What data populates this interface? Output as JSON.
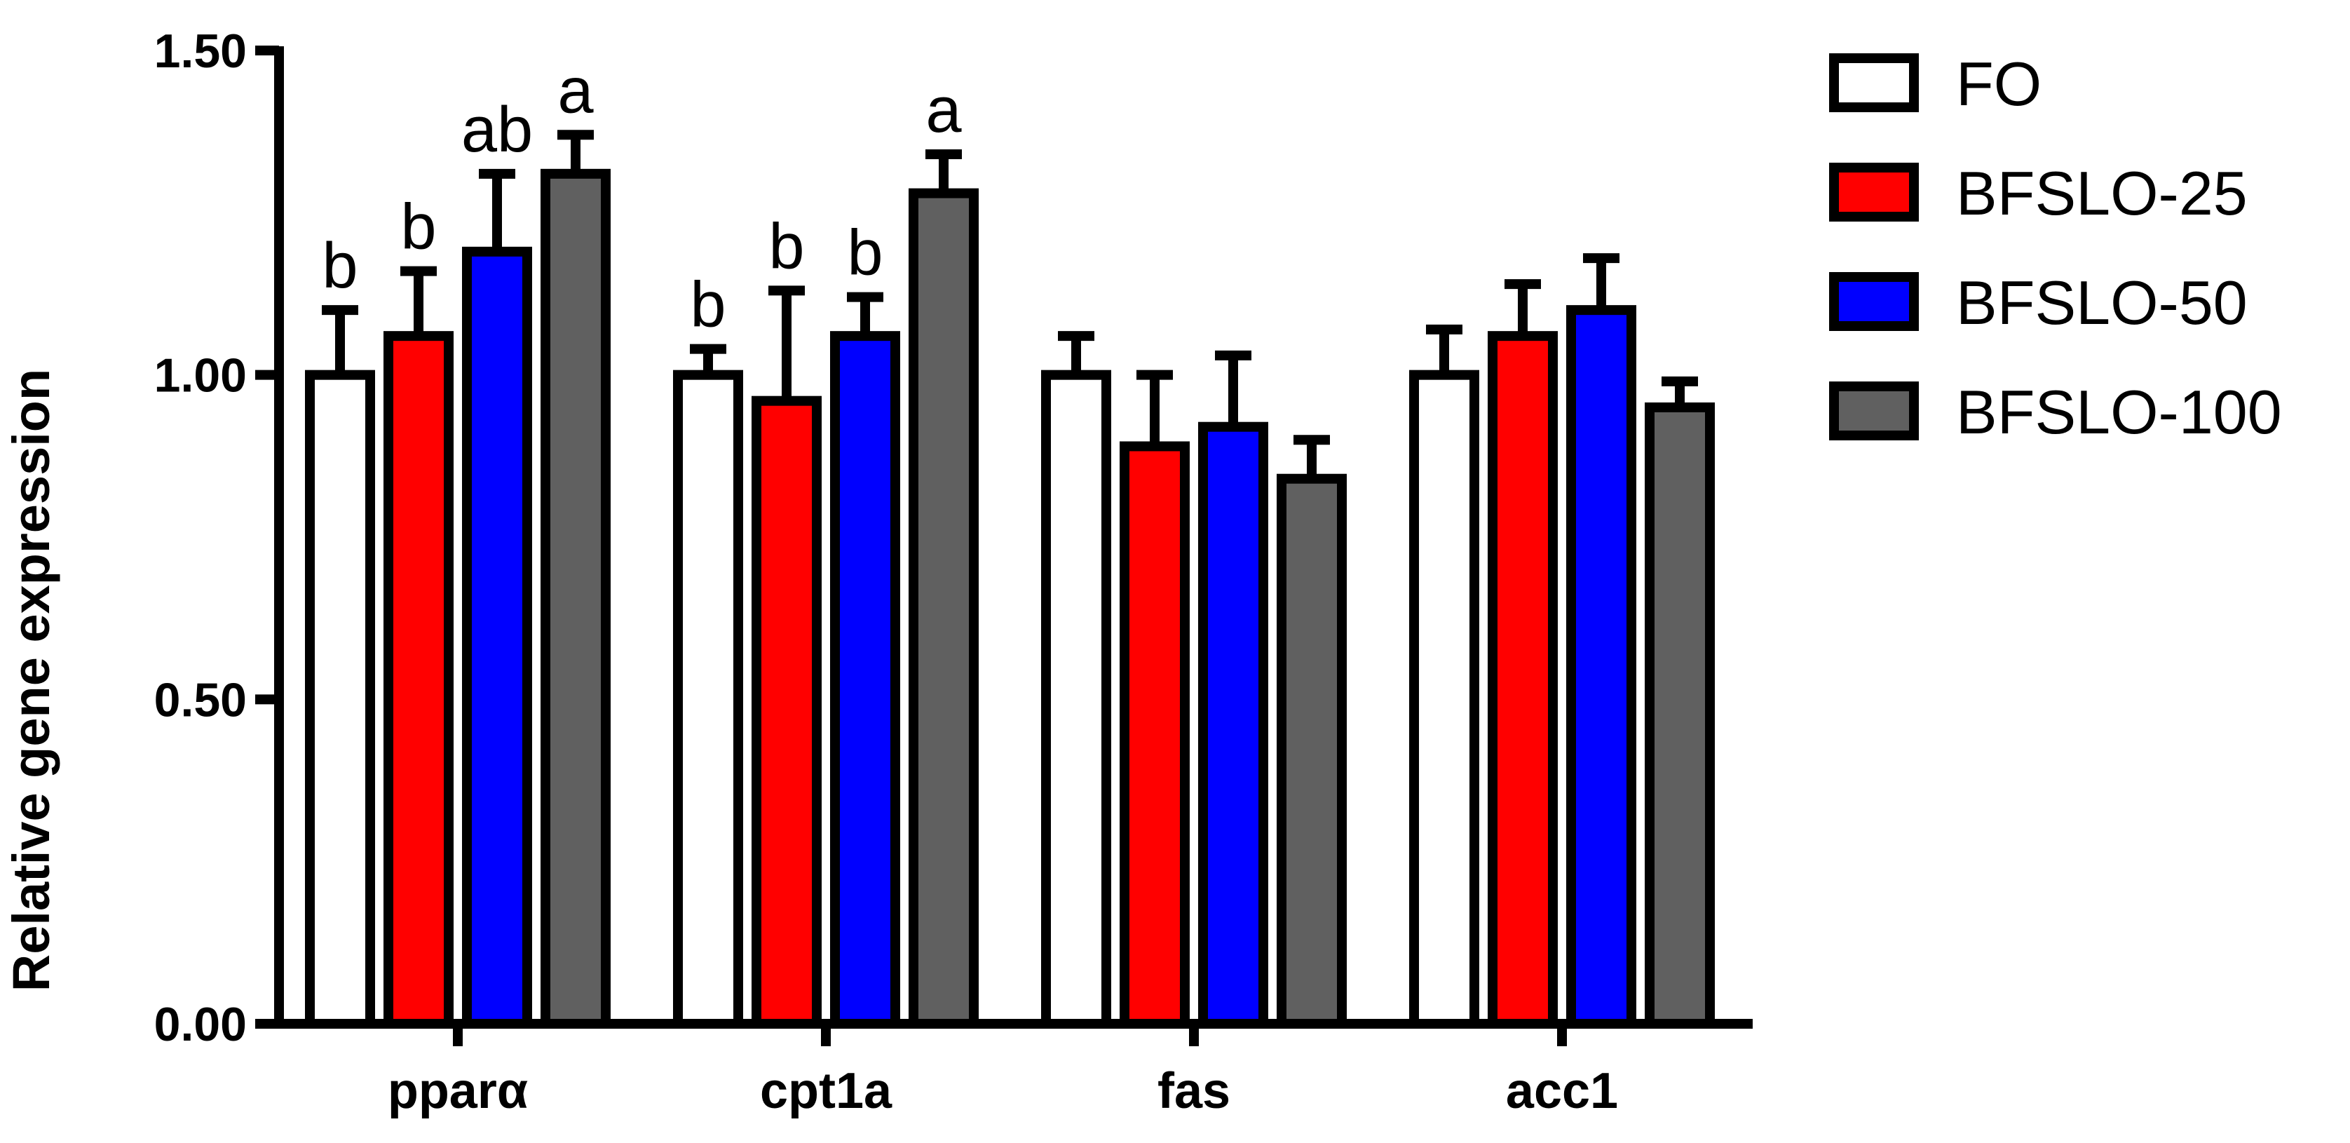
{
  "chart_data": {
    "type": "bar",
    "title": "",
    "xlabel": "",
    "ylabel": "Relative gene expression",
    "ylim": [
      0,
      1.5
    ],
    "yticks": [
      "0.00",
      "0.50",
      "1.00",
      "1.50"
    ],
    "ytick_values": [
      0,
      0.5,
      1.0,
      1.5
    ],
    "categories": [
      "pparα",
      "cpt1a",
      "fas",
      "acc1"
    ],
    "legend_position": "right",
    "series": [
      {
        "name": "FO",
        "color": "#ffffff",
        "values": [
          1.0,
          1.0,
          1.0,
          1.0
        ],
        "errors": [
          0.1,
          0.04,
          0.06,
          0.07
        ],
        "labels": [
          "b",
          "b",
          "",
          ""
        ]
      },
      {
        "name": "BFSLO-25",
        "color": "#ff0000",
        "values": [
          1.06,
          0.96,
          0.89,
          1.06
        ],
        "errors": [
          0.1,
          0.17,
          0.11,
          0.08
        ],
        "labels": [
          "b",
          "b",
          "",
          ""
        ]
      },
      {
        "name": "BFSLO-50",
        "color": "#0000ff",
        "values": [
          1.19,
          1.06,
          0.92,
          1.1
        ],
        "errors": [
          0.12,
          0.06,
          0.11,
          0.08
        ],
        "labels": [
          "ab",
          "b",
          "",
          ""
        ]
      },
      {
        "name": "BFSLO-100",
        "color": "#606060",
        "values": [
          1.31,
          1.28,
          0.84,
          0.95
        ],
        "errors": [
          0.06,
          0.06,
          0.06,
          0.04
        ],
        "labels": [
          "a",
          "a",
          "",
          ""
        ]
      }
    ]
  }
}
